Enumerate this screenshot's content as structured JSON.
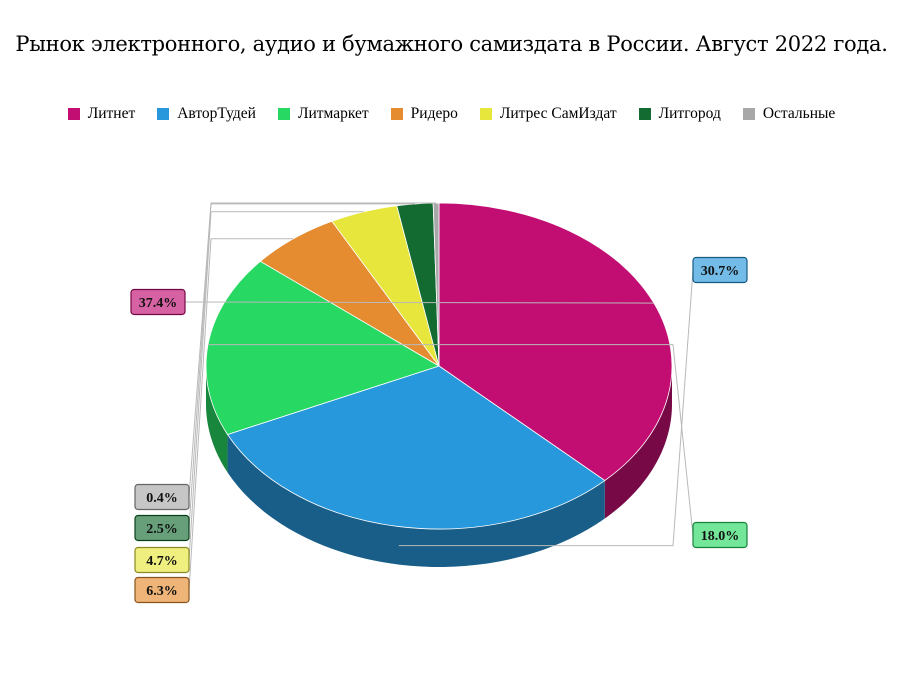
{
  "chart_data": {
    "type": "pie",
    "title": "Рынок электронного, аудио и бумажного самиздата в России. Август 2022 года.",
    "legend_position": "top",
    "slices": [
      {
        "label": "Литнет",
        "value": 37.4,
        "value_label": "37.4%",
        "color": "#c20e72"
      },
      {
        "label": "АвторТудей",
        "value": 30.7,
        "value_label": "30.7%",
        "color": "#2798dc"
      },
      {
        "label": "Литмаркет",
        "value": 18.0,
        "value_label": "18.0%",
        "color": "#27d963"
      },
      {
        "label": "Ридеро",
        "value": 6.3,
        "value_label": "6.3%",
        "color": "#e58b30"
      },
      {
        "label": "Литрес СамИздат",
        "value": 4.7,
        "value_label": "4.7%",
        "color": "#e6e63c"
      },
      {
        "label": "Литгород",
        "value": 2.5,
        "value_label": "2.5%",
        "color": "#136b31"
      },
      {
        "label": "Остальные",
        "value": 0.4,
        "value_label": "0.4%",
        "color": "#a8a8a8"
      }
    ]
  }
}
